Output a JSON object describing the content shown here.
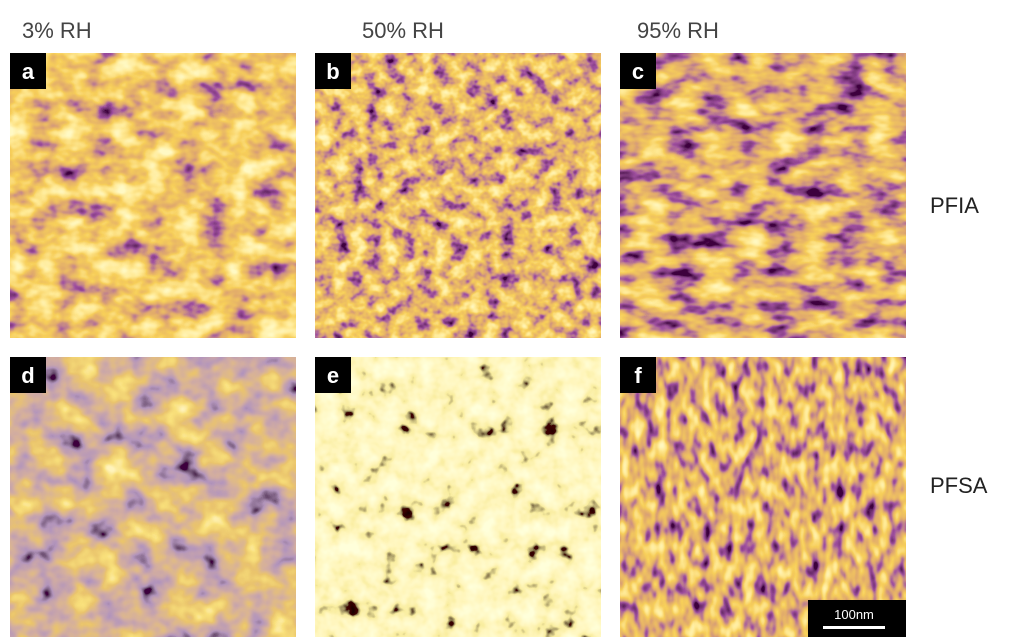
{
  "columns": [
    "3% RH",
    "50% RH",
    "95% RH"
  ],
  "rows": [
    "PFIA",
    "PFSA"
  ],
  "panels": [
    "a",
    "b",
    "c",
    "d",
    "e",
    "f"
  ],
  "scale_bar": "100nm"
}
